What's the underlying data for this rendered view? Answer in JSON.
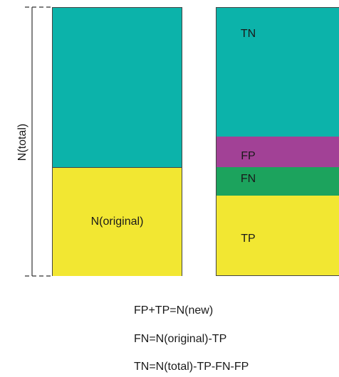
{
  "axis": {
    "label": "N(total)"
  },
  "left_bar": {
    "segments": [
      {
        "key": "upper",
        "label": "",
        "color": "#0cb3aa",
        "fraction": 0.595
      },
      {
        "key": "original",
        "label": "N(original)",
        "color": "#f2e732",
        "fraction": 0.405
      }
    ]
  },
  "right_bar": {
    "segments": [
      {
        "key": "tn",
        "label": "TN",
        "color": "#0cb3aa",
        "fraction": 0.481
      },
      {
        "key": "fp",
        "label": "FP",
        "color": "#a24196",
        "fraction": 0.114
      },
      {
        "key": "fn",
        "label": "FN",
        "color": "#1ca35d",
        "fraction": 0.105
      },
      {
        "key": "tp",
        "label": "TP",
        "color": "#f2e732",
        "fraction": 0.3
      }
    ]
  },
  "equations": [
    "FP+TP=N(new)",
    "FN=N(original)-TP",
    "TN=N(total)-TP-FN-FP"
  ]
}
